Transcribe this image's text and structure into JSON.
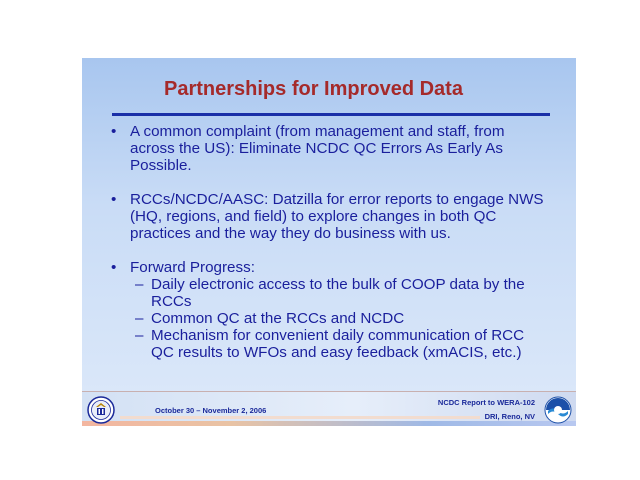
{
  "slide": {
    "title": "Partnerships for Improved Data",
    "bullets": [
      {
        "marker": "•",
        "text": "A common complaint (from management and staff, from across the US): Eliminate NCDC QC Errors As Early As Possible."
      },
      {
        "marker": "•",
        "text": "RCCs/NCDC/AASC: Datzilla for error reports to engage NWS (HQ, regions, and field) to explore changes in both QC practices and the way they do business with us."
      },
      {
        "marker": "•",
        "text": "Forward Progress:",
        "sub_marker": "–",
        "sub_items": [
          "Daily electronic access to the bulk of COOP data by the RCCs",
          "Common QC at the RCCs and NCDC",
          "Mechanism for convenient daily communication of RCC QC results to WFOs and easy feedback (xmACIS, etc.)"
        ]
      }
    ]
  },
  "footer": {
    "date": "October 30 – November 2, 2006",
    "report_line1": "NCDC Report to WERA-102",
    "report_line2": "DRI, Reno, NV",
    "left_logo_icon": "doc-seal-icon",
    "right_logo_icon": "noaa-logo-icon"
  },
  "colors": {
    "title": "#a52a2a",
    "body_text": "#1a1f9c",
    "rule": "#1a2fa8"
  }
}
